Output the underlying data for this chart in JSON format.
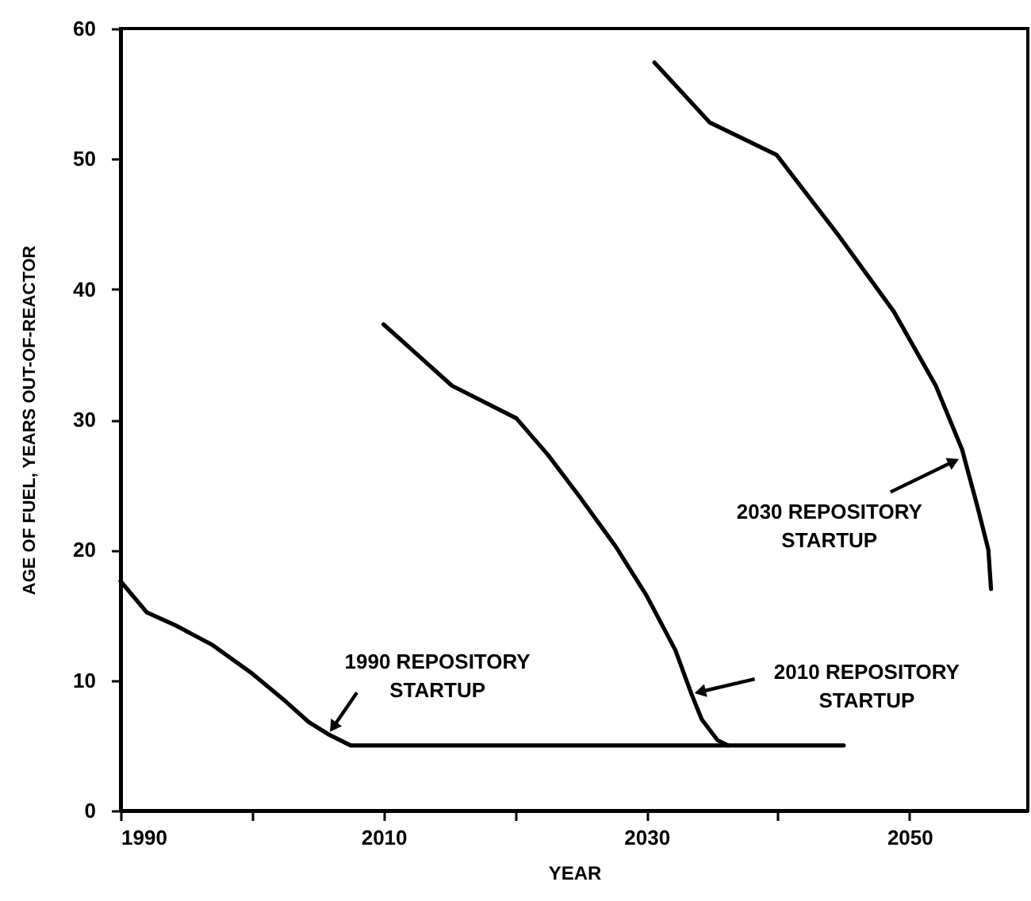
{
  "chart_data": {
    "type": "line",
    "xlabel": "YEAR",
    "ylabel": "AGE OF FUEL, YEARS OUT-OF-REACTOR",
    "xlim": [
      1990,
      2059
    ],
    "ylim": [
      0,
      60
    ],
    "xticks": [
      1990,
      {
        "value": 2000,
        "label": null
      },
      2010,
      {
        "value": 2020,
        "label": null
      },
      2030,
      {
        "value": 2040,
        "label": null
      },
      2050
    ],
    "yticks": [
      0,
      10,
      20,
      30,
      40,
      50,
      60
    ],
    "grid": false,
    "marker": "none",
    "line_style": "solid",
    "series": [
      {
        "color": "#000000",
        "x": [
          1990,
          1991,
          1992,
          1994.2,
          1997,
          1999.9,
          2002.3,
          2004.3,
          2005.9,
          2007.5,
          2010,
          2045
        ],
        "values": [
          17.6,
          16.4,
          15.2,
          14.2,
          12.7,
          10.6,
          8.6,
          6.8,
          5.8,
          5.0,
          5.0,
          5.0
        ]
      },
      {
        "color": "#000000",
        "x": [
          2010,
          2012,
          2015.2,
          2020.1,
          2022.5,
          2024.9,
          2027.7,
          2030,
          2032.2,
          2033.4,
          2034.2,
          2035.4,
          2036.2
        ],
        "values": [
          37.3,
          35.5,
          32.6,
          30.1,
          27.3,
          24.1,
          20.2,
          16.5,
          12.3,
          9.0,
          7.0,
          5.4,
          5.0
        ]
      },
      {
        "color": "#000000",
        "x": [
          2030.6,
          2034.8,
          2039.9,
          2044.7,
          2048.8,
          2052,
          2054,
          2055.2,
          2056,
          2056.2
        ],
        "values": [
          57.4,
          52.8,
          50.3,
          44.0,
          38.3,
          32.6,
          27.7,
          23.2,
          20.0,
          17.0
        ]
      }
    ],
    "annotations": [
      {
        "text": "1990 REPOSITORY STARTUP",
        "x": 2005.9,
        "y": 6.0
      },
      {
        "text": "2010 REPOSITORY STARTUP",
        "x": 2033.6,
        "y": 9.0
      },
      {
        "text": "2030 REPOSITORY STARTUP",
        "x": 2053.8,
        "y": 27.0
      }
    ]
  }
}
